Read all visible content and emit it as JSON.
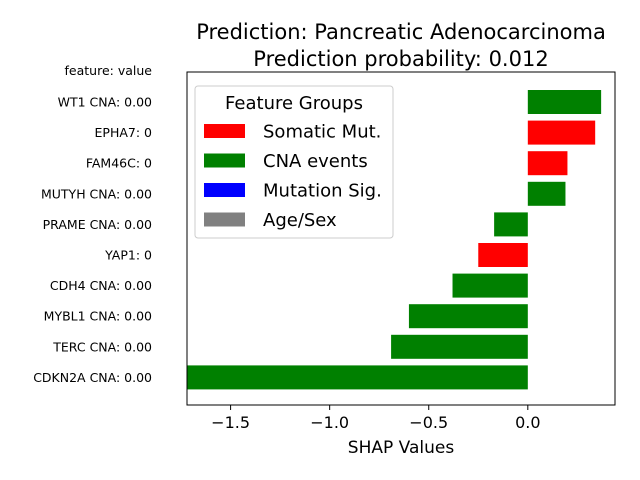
{
  "chart_data": {
    "type": "bar",
    "orientation": "horizontal",
    "title_line1": "Prediction: Pancreatic Adenocarcinoma",
    "title_line2": "Prediction probability: 0.012",
    "xlabel": "SHAP Values",
    "ylabel_header": "feature: value",
    "xlim": [
      -1.72,
      0.44
    ],
    "xticks": [
      -1.5,
      -1.0,
      -0.5,
      0.0
    ],
    "xtick_labels": [
      "−1.5",
      "−1.0",
      "−0.5",
      "0.0"
    ],
    "bars": [
      {
        "label": "WT1 CNA: 0.00",
        "value": 0.37,
        "group": "CNA events"
      },
      {
        "label": "EPHA7: 0",
        "value": 0.34,
        "group": "Somatic Mut."
      },
      {
        "label": "FAM46C: 0",
        "value": 0.2,
        "group": "Somatic Mut."
      },
      {
        "label": "MUTYH CNA: 0.00",
        "value": 0.19,
        "group": "CNA events"
      },
      {
        "label": "PRAME CNA: 0.00",
        "value": -0.17,
        "group": "CNA events"
      },
      {
        "label": "YAP1: 0",
        "value": -0.25,
        "group": "Somatic Mut."
      },
      {
        "label": "CDH4 CNA: 0.00",
        "value": -0.38,
        "group": "CNA events"
      },
      {
        "label": "MYBL1 CNA: 0.00",
        "value": -0.6,
        "group": "CNA events"
      },
      {
        "label": "TERC CNA: 0.00",
        "value": -0.69,
        "group": "CNA events"
      },
      {
        "label": "CDKN2A CNA: 0.00",
        "value": -1.72,
        "group": "CNA events"
      }
    ],
    "legend": {
      "title": "Feature Groups",
      "placement": "upper-left",
      "entries": [
        {
          "name": "Somatic Mut.",
          "color": "#ff0000"
        },
        {
          "name": "CNA events",
          "color": "#008000"
        },
        {
          "name": "Mutation Sig.",
          "color": "#0000ff"
        },
        {
          "name": "Age/Sex",
          "color": "#808080"
        }
      ]
    }
  }
}
